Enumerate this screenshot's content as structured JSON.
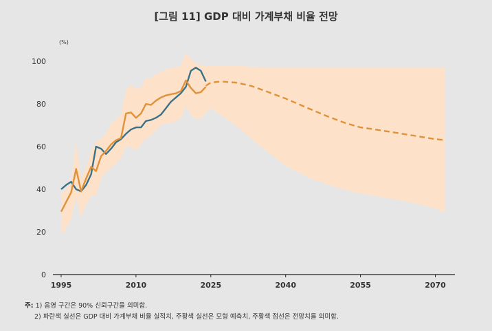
{
  "chart_data": {
    "type": "line",
    "title": "[그림 11] GDP 대비 가계부채 비율 전망",
    "ylabel": "(%)",
    "xlabel": "",
    "xlim": [
      1995,
      2072
    ],
    "ylim": [
      0,
      100
    ],
    "x_ticks": [
      "1995",
      "2010",
      "2025",
      "2040",
      "2055",
      "2070"
    ],
    "y_ticks": [
      "0",
      "20",
      "40",
      "60",
      "80",
      "100"
    ],
    "grid": false,
    "legend": "none",
    "series": [
      {
        "style": "solid",
        "color": "#3b7187",
        "x": [
          1995,
          1996,
          1997,
          1998,
          1999,
          2000,
          2001,
          2002,
          2003,
          2004,
          2005,
          2006,
          2007,
          2008,
          2009,
          2010,
          2011,
          2012,
          2013,
          2014,
          2015,
          2016,
          2017,
          2018,
          2019,
          2020,
          2021,
          2022,
          2023,
          2024
        ],
        "y": [
          40,
          42,
          43.5,
          40,
          39,
          42,
          47,
          60,
          59,
          56.5,
          59,
          62,
          63.5,
          66,
          68,
          69,
          69,
          72,
          72.5,
          73.5,
          75,
          78,
          81,
          83,
          85,
          88,
          95.5,
          97,
          95.5,
          90.5
        ]
      },
      {
        "style": "solid",
        "color": "#e0913a",
        "x": [
          1995,
          1996,
          1997,
          1998,
          1999,
          2000,
          2001,
          2002,
          2003,
          2004,
          2005,
          2006,
          2007,
          2008,
          2009,
          2010,
          2011,
          2012,
          2013,
          2014,
          2015,
          2016,
          2017,
          2018,
          2019,
          2020,
          2021,
          2022,
          2023,
          2024
        ],
        "y": [
          29.5,
          34,
          38.5,
          49.5,
          39,
          45,
          50.5,
          48.5,
          55.5,
          58,
          61,
          63,
          64,
          75.5,
          76,
          73.5,
          75.5,
          80,
          79.5,
          81.5,
          83,
          84,
          84.5,
          85,
          86,
          91,
          87.5,
          85,
          85.5,
          88
        ]
      },
      {
        "style": "dashed",
        "color": "#e0913a",
        "x": [
          2024,
          2025,
          2027,
          2030,
          2033,
          2036,
          2040,
          2044,
          2048,
          2052,
          2055,
          2058,
          2062,
          2066,
          2070,
          2072
        ],
        "y": [
          88.5,
          90,
          90.5,
          90,
          88.5,
          86,
          82.5,
          78.5,
          74.5,
          71,
          69,
          68,
          66.5,
          65,
          63.5,
          63
        ]
      }
    ],
    "confidence_band": {
      "color": "#fde1c8",
      "x": [
        1995,
        1996,
        1997,
        1998,
        1999,
        2000,
        2001,
        2002,
        2003,
        2004,
        2005,
        2006,
        2007,
        2008,
        2009,
        2010,
        2011,
        2012,
        2013,
        2014,
        2015,
        2016,
        2017,
        2018,
        2019,
        2020,
        2021,
        2022,
        2023,
        2024,
        2025,
        2030,
        2035,
        2040,
        2045,
        2050,
        2055,
        2060,
        2065,
        2070,
        2072
      ],
      "upper": [
        38,
        40,
        44,
        62,
        45,
        50,
        58,
        62,
        64,
        66,
        71,
        73,
        75,
        87,
        89,
        87,
        88,
        92,
        92,
        94,
        95,
        96,
        97,
        97,
        98,
        104,
        101,
        99,
        98,
        98,
        98,
        98,
        97,
        97,
        97,
        97,
        97,
        97,
        97,
        97,
        97
      ],
      "lower": [
        18,
        22,
        26,
        36,
        27,
        33,
        37,
        37,
        45,
        48,
        50,
        52,
        55,
        60,
        60,
        58,
        61,
        64,
        65,
        68,
        70,
        71,
        71,
        72,
        73,
        79,
        75,
        73,
        73,
        76,
        78,
        70,
        60,
        51,
        45,
        41,
        38,
        36,
        34,
        31,
        29
      ]
    }
  },
  "notes": {
    "label": "주:",
    "line1": "1) 음영 구간은 90% 신뢰구간을 의미함.",
    "line2": "2) 파란색 실선은 GDP 대비 가계부채 비율 실적치, 주황색 실선은 모형 예측치, 주황색 점선은 전망치를 의미함."
  }
}
